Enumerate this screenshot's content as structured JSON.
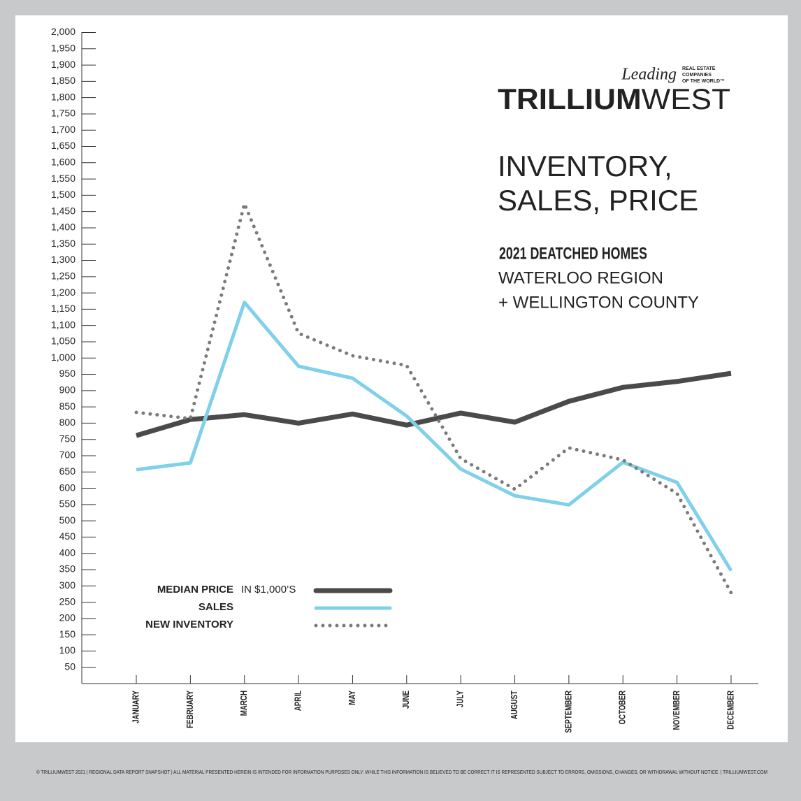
{
  "brand": {
    "leading": "Leading",
    "network": [
      "REAL ESTATE",
      "COMPANIES",
      "OF THE WORLD™"
    ],
    "name_bold": "TRILLIUM",
    "name_light": "WEST"
  },
  "chart_data": {
    "type": "line",
    "title": [
      "INVENTORY,",
      "SALES, PRICE"
    ],
    "subtitle": "2021 DEATCHED HOMES",
    "region": [
      "WATERLOO REGION",
      "+ WELLINGTON COUNTY"
    ],
    "legend_note": "IN $1,000’S",
    "categories": [
      "JANUARY",
      "FEBRUARY",
      "MARCH",
      "APRIL",
      "MAY",
      "JUNE",
      "JULY",
      "AUGUST",
      "SEPTEMBER",
      "OCTOBER",
      "NOVEMBER",
      "DECEMBER"
    ],
    "series": [
      {
        "name": "MEDIAN PRICE",
        "color": "#4a4a4a",
        "style": "solid",
        "width": 7,
        "values": [
          762,
          811,
          826,
          800,
          828,
          794,
          831,
          803,
          867,
          910,
          928,
          953
        ]
      },
      {
        "name": "SALES",
        "color": "#80d0ea",
        "style": "solid",
        "width": 5,
        "values": [
          657,
          678,
          1171,
          975,
          938,
          822,
          659,
          577,
          549,
          680,
          618,
          347
        ]
      },
      {
        "name": "NEW INVENTORY",
        "color": "#7a7a7a",
        "style": "dotted",
        "width": 5,
        "values": [
          833,
          814,
          1474,
          1076,
          1007,
          977,
          691,
          597,
          724,
          687,
          584,
          279
        ]
      }
    ],
    "ylim": [
      0,
      2000
    ],
    "yticks": [
      50,
      100,
      150,
      200,
      250,
      300,
      350,
      400,
      450,
      500,
      550,
      600,
      650,
      700,
      750,
      800,
      850,
      900,
      950,
      {
        "value": 1000,
        "label": "1,000"
      },
      {
        "value": 1050,
        "label": "1,050"
      },
      {
        "value": 1100,
        "label": "1,100"
      },
      {
        "value": 1150,
        "label": "1,150"
      },
      {
        "value": 1200,
        "label": "1,200"
      },
      {
        "value": 1250,
        "label": "1,250"
      },
      {
        "value": 1300,
        "label": "1,300"
      },
      {
        "value": 1350,
        "label": "1,350"
      },
      {
        "value": 1400,
        "label": "1,400"
      },
      {
        "value": 1450,
        "label": "1,450"
      },
      {
        "value": 1500,
        "label": "1,500"
      },
      {
        "value": 1550,
        "label": "1,550"
      },
      {
        "value": 1600,
        "label": "1,600"
      },
      {
        "value": 1650,
        "label": "1,650"
      },
      {
        "value": 1700,
        "label": "1,700"
      },
      {
        "value": 1750,
        "label": "1,750"
      },
      {
        "value": 1800,
        "label": "1,800"
      },
      {
        "value": 1850,
        "label": "1,850"
      },
      {
        "value": 1900,
        "label": "1,900"
      },
      {
        "value": 1950,
        "label": "1,950"
      },
      {
        "value": 2000,
        "label": "2,000"
      }
    ],
    "grid": false
  },
  "footer": "© TRILLIUMWEST 2021  |  REGIONAL DATA REPORT SNAPSHOT  |  ALL MATERIAL PRESENTED HEREIN IS INTENDED FOR INFORMATION PURPOSES ONLY. WHILE THIS INFORMATION IS BELIEVED TO BE CORRECT IT IS REPRESENTED SUBJECT TO ERRORS, OMISSIONS, CHANGES, OR WITHDRAWAL WITHOUT NOTICE.  |  TRILLIUMWEST.COM"
}
